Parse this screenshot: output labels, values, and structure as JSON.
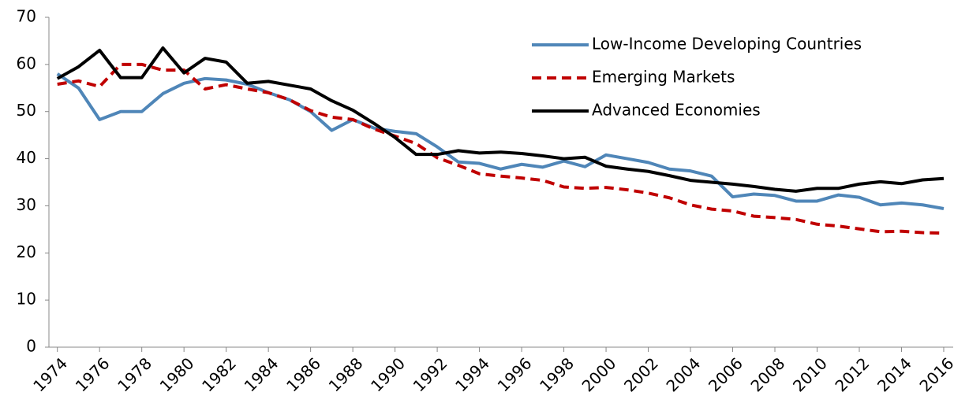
{
  "chart_data": {
    "type": "line",
    "x": [
      1974,
      1975,
      1976,
      1977,
      1978,
      1979,
      1980,
      1981,
      1982,
      1983,
      1984,
      1985,
      1986,
      1987,
      1988,
      1989,
      1990,
      1991,
      1992,
      1993,
      1994,
      1995,
      1996,
      1997,
      1998,
      1999,
      2000,
      2001,
      2002,
      2003,
      2004,
      2005,
      2006,
      2007,
      2008,
      2009,
      2010,
      2011,
      2012,
      2013,
      2014,
      2015,
      2016
    ],
    "series": [
      {
        "name": "Low-Income Developing Countries",
        "color": "#4f86b8",
        "style": "solid",
        "values": [
          58,
          55,
          48.3,
          50,
          50,
          53.8,
          56,
          57,
          56.7,
          55.8,
          54,
          52.5,
          50,
          46,
          48.3,
          46.5,
          45.8,
          45.3,
          42.5,
          39.3,
          39,
          37.8,
          38.8,
          38.2,
          39.5,
          38.3,
          40.8,
          40,
          39.2,
          37.8,
          37.4,
          36.3,
          31.9,
          32.5,
          32.2,
          31,
          31,
          32.3,
          31.8,
          30.2,
          30.6,
          30.2,
          29.4
        ]
      },
      {
        "name": "Emerging Markets",
        "color": "#c00000",
        "style": "dashed",
        "values": [
          55.8,
          56.5,
          55.3,
          60,
          60,
          58.8,
          58.8,
          54.8,
          55.7,
          54.8,
          54,
          52.5,
          50.2,
          48.8,
          48.3,
          46.3,
          44.8,
          43.2,
          40.2,
          38.6,
          36.8,
          36.3,
          35.9,
          35.4,
          34,
          33.7,
          33.9,
          33.4,
          32.7,
          31.7,
          30.2,
          29.3,
          28.9,
          27.8,
          27.5,
          27.1,
          26.1,
          25.7,
          25.1,
          24.5,
          24.6,
          24.3,
          24.2
        ]
      },
      {
        "name": "Advanced Economies",
        "color": "#000000",
        "style": "solid",
        "values": [
          57,
          59.5,
          63,
          57.2,
          57.2,
          63.5,
          58.2,
          61.3,
          60.5,
          56,
          56.4,
          55.6,
          54.8,
          52.3,
          50.3,
          47.5,
          44.5,
          40.9,
          40.9,
          41.7,
          41.2,
          41.4,
          41.1,
          40.6,
          40,
          40.3,
          38.4,
          37.8,
          37.3,
          36.4,
          35.4,
          35,
          34.6,
          34.1,
          33.5,
          33.1,
          33.7,
          33.7,
          34.6,
          35.1,
          34.7,
          35.5,
          35.8
        ]
      }
    ],
    "xlim": [
      1973.6,
      2016.45
    ],
    "xticks": [
      1974,
      1976,
      1978,
      1980,
      1982,
      1984,
      1986,
      1988,
      1990,
      1992,
      1994,
      1996,
      1998,
      2000,
      2002,
      2004,
      2006,
      2008,
      2010,
      2012,
      2014,
      2016
    ],
    "ylim": [
      0,
      70
    ],
    "yticks": [
      0,
      10,
      20,
      30,
      40,
      50,
      60,
      70
    ],
    "grid": false,
    "legend": "upper right"
  }
}
